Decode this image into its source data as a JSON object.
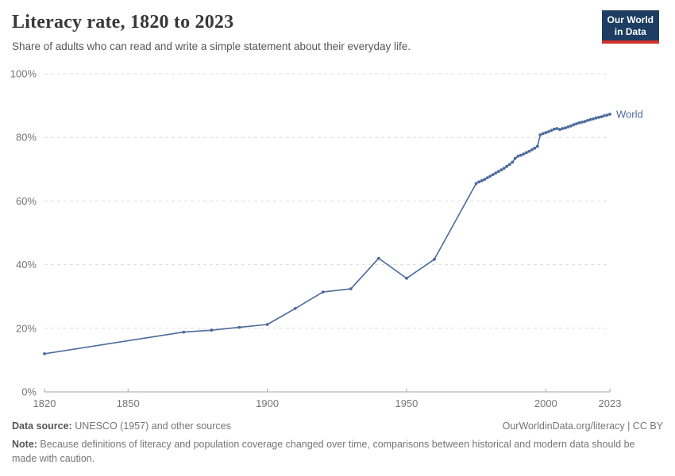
{
  "header": {
    "title": "Literacy rate, 1820 to 2023",
    "subtitle": "Share of adults who can read and write a simple statement about their everyday life.",
    "logo": {
      "line1": "Our World",
      "line2": "in Data"
    }
  },
  "colors": {
    "line": "#4c6a9c",
    "grid": "#dcdcdc",
    "axis": "#a5a5a5",
    "tick_label": "#767676",
    "title_text": "#383838",
    "logo_bg": "#1d3d63",
    "logo_red": "#d2302c"
  },
  "chart_data": {
    "type": "line",
    "title": "Literacy rate, 1820 to 2023",
    "xlabel": "",
    "ylabel": "",
    "xlim": [
      1820,
      2023
    ],
    "ylim": [
      0,
      100
    ],
    "x_ticks": [
      1820,
      1850,
      1900,
      1950,
      2000,
      2023
    ],
    "y_ticks": [
      0,
      20,
      40,
      60,
      80,
      100
    ],
    "y_tick_suffix": "%",
    "grid": "horizontal-dashed",
    "legend_position": "end-of-line",
    "series": [
      {
        "name": "World",
        "color": "#4c6a9c",
        "x": [
          1820,
          1870,
          1880,
          1890,
          1900,
          1910,
          1920,
          1930,
          1940,
          1950,
          1960,
          1975,
          1976,
          1977,
          1978,
          1979,
          1980,
          1981,
          1982,
          1983,
          1984,
          1985,
          1986,
          1987,
          1988,
          1989,
          1990,
          1991,
          1992,
          1993,
          1994,
          1995,
          1996,
          1997,
          1998,
          1999,
          2000,
          2001,
          2002,
          2003,
          2004,
          2005,
          2006,
          2007,
          2008,
          2009,
          2010,
          2011,
          2012,
          2013,
          2014,
          2015,
          2016,
          2017,
          2018,
          2019,
          2020,
          2021,
          2022,
          2023
        ],
        "values": [
          12.0,
          18.8,
          19.4,
          20.3,
          21.2,
          26.2,
          31.4,
          32.4,
          42.0,
          35.7,
          41.7,
          65.5,
          66.0,
          66.4,
          66.8,
          67.3,
          67.8,
          68.3,
          68.8,
          69.3,
          69.8,
          70.3,
          70.9,
          71.5,
          72.2,
          73.4,
          74.1,
          74.4,
          74.8,
          75.2,
          75.6,
          76.1,
          76.6,
          77.2,
          80.8,
          81.2,
          81.5,
          81.8,
          82.2,
          82.6,
          82.8,
          82.5,
          82.8,
          83.0,
          83.3,
          83.6,
          84.0,
          84.3,
          84.6,
          84.8,
          85.0,
          85.3,
          85.6,
          85.8,
          86.1,
          86.3,
          86.5,
          86.8,
          87.0,
          87.3
        ]
      }
    ]
  },
  "footer": {
    "datasource_label": "Data source:",
    "datasource_text": " UNESCO (1957) and other sources",
    "link_text": "OurWorldinData.org/literacy | CC BY",
    "note_label": "Note:",
    "note_text": " Because definitions of literacy and population coverage changed over time, comparisons between historical and modern data should be made with caution."
  }
}
